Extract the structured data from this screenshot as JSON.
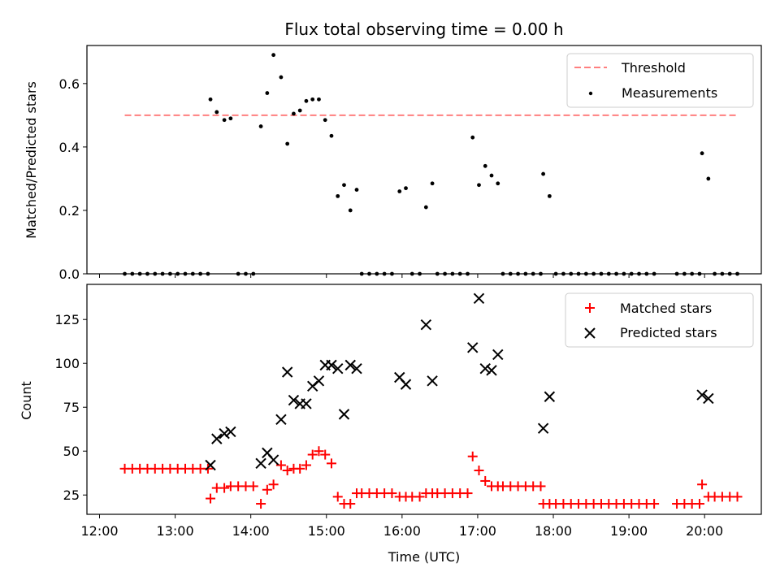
{
  "chart_data": [
    {
      "type": "scatter",
      "title": "Flux total observing time = 0.00 h",
      "xlabel": "",
      "ylabel": "Matched/Predicted stars",
      "ylim": [
        0,
        0.72
      ],
      "yticks": [
        "0.0",
        "0.2",
        "0.4",
        "0.6"
      ],
      "xlim": [
        "11:50",
        "20:45"
      ],
      "legend_position": "top-right",
      "threshold": {
        "name": "Threshold",
        "value": 0.5,
        "x_range": [
          "12:20",
          "20:25"
        ],
        "color": "#ff7f7f"
      },
      "series": [
        {
          "name": "Measurements",
          "color": "#000000",
          "points": [
            [
              "12:20",
              0
            ],
            [
              "12:26",
              0
            ],
            [
              "12:32",
              0
            ],
            [
              "12:38",
              0
            ],
            [
              "12:44",
              0
            ],
            [
              "12:50",
              0
            ],
            [
              "12:56",
              0
            ],
            [
              "13:02",
              0
            ],
            [
              "13:08",
              0
            ],
            [
              "13:14",
              0
            ],
            [
              "13:20",
              0
            ],
            [
              "13:26",
              0
            ],
            [
              "13:28",
              0.55
            ],
            [
              "13:33",
              0.51
            ],
            [
              "13:39",
              0.485
            ],
            [
              "13:44",
              0.49
            ],
            [
              "13:50",
              0
            ],
            [
              "13:56",
              0
            ],
            [
              "14:02",
              0
            ],
            [
              "14:08",
              0.465
            ],
            [
              "14:13",
              0.57
            ],
            [
              "14:18",
              0.69
            ],
            [
              "14:24",
              0.62
            ],
            [
              "14:29",
              0.41
            ],
            [
              "14:34",
              0.505
            ],
            [
              "14:39",
              0.515
            ],
            [
              "14:44",
              0.545
            ],
            [
              "14:49",
              0.55
            ],
            [
              "14:54",
              0.55
            ],
            [
              "14:59",
              0.485
            ],
            [
              "15:04",
              0.435
            ],
            [
              "15:09",
              0.245
            ],
            [
              "15:14",
              0.28
            ],
            [
              "15:19",
              0.2
            ],
            [
              "15:24",
              0.265
            ],
            [
              "15:28",
              0
            ],
            [
              "15:34",
              0
            ],
            [
              "15:40",
              0
            ],
            [
              "15:46",
              0
            ],
            [
              "15:52",
              0
            ],
            [
              "15:58",
              0.26
            ],
            [
              "16:03",
              0.27
            ],
            [
              "16:08",
              0
            ],
            [
              "16:14",
              0
            ],
            [
              "16:19",
              0.21
            ],
            [
              "16:24",
              0.285
            ],
            [
              "16:28",
              0
            ],
            [
              "16:34",
              0
            ],
            [
              "16:40",
              0
            ],
            [
              "16:46",
              0
            ],
            [
              "16:52",
              0
            ],
            [
              "16:56",
              0.43
            ],
            [
              "17:01",
              0.28
            ],
            [
              "17:06",
              0.34
            ],
            [
              "17:11",
              0.31
            ],
            [
              "17:16",
              0.285
            ],
            [
              "17:20",
              0
            ],
            [
              "17:26",
              0
            ],
            [
              "17:32",
              0
            ],
            [
              "17:38",
              0
            ],
            [
              "17:44",
              0
            ],
            [
              "17:50",
              0
            ],
            [
              "17:52",
              0.315
            ],
            [
              "17:57",
              0.245
            ],
            [
              "18:02",
              0
            ],
            [
              "18:08",
              0
            ],
            [
              "18:14",
              0
            ],
            [
              "18:20",
              0
            ],
            [
              "18:26",
              0
            ],
            [
              "18:32",
              0
            ],
            [
              "18:38",
              0
            ],
            [
              "18:44",
              0
            ],
            [
              "18:50",
              0
            ],
            [
              "18:56",
              0
            ],
            [
              "19:02",
              0
            ],
            [
              "19:08",
              0
            ],
            [
              "19:14",
              0
            ],
            [
              "19:20",
              0
            ],
            [
              "19:38",
              0
            ],
            [
              "19:44",
              0
            ],
            [
              "19:50",
              0
            ],
            [
              "19:56",
              0
            ],
            [
              "19:58",
              0.38
            ],
            [
              "20:03",
              0.3
            ],
            [
              "20:08",
              0
            ],
            [
              "20:14",
              0
            ],
            [
              "20:20",
              0
            ],
            [
              "20:26",
              0
            ]
          ]
        }
      ]
    },
    {
      "type": "scatter",
      "title": "",
      "xlabel": "Time (UTC)",
      "ylabel": "Count",
      "ylim": [
        14,
        145
      ],
      "yticks": [
        "25",
        "50",
        "75",
        "100",
        "125"
      ],
      "xticks": [
        "12:00",
        "13:00",
        "14:00",
        "15:00",
        "16:00",
        "17:00",
        "18:00",
        "19:00",
        "20:00"
      ],
      "xlim": [
        "11:50",
        "20:45"
      ],
      "legend_position": "top-right",
      "series": [
        {
          "name": "Matched stars",
          "color": "#ff0000",
          "marker": "plus",
          "points": [
            [
              "12:20",
              40
            ],
            [
              "12:26",
              40
            ],
            [
              "12:32",
              40
            ],
            [
              "12:38",
              40
            ],
            [
              "12:44",
              40
            ],
            [
              "12:50",
              40
            ],
            [
              "12:56",
              40
            ],
            [
              "13:02",
              40
            ],
            [
              "13:08",
              40
            ],
            [
              "13:14",
              40
            ],
            [
              "13:20",
              40
            ],
            [
              "13:26",
              40
            ],
            [
              "13:28",
              23
            ],
            [
              "13:33",
              29
            ],
            [
              "13:39",
              29
            ],
            [
              "13:44",
              30
            ],
            [
              "13:50",
              30
            ],
            [
              "13:56",
              30
            ],
            [
              "14:02",
              30
            ],
            [
              "14:08",
              20
            ],
            [
              "14:13",
              28
            ],
            [
              "14:18",
              31
            ],
            [
              "14:24",
              42
            ],
            [
              "14:29",
              39
            ],
            [
              "14:34",
              40
            ],
            [
              "14:39",
              40
            ],
            [
              "14:44",
              42
            ],
            [
              "14:49",
              48
            ],
            [
              "14:54",
              50
            ],
            [
              "14:59",
              48
            ],
            [
              "15:04",
              43
            ],
            [
              "15:09",
              24
            ],
            [
              "15:14",
              20
            ],
            [
              "15:19",
              20
            ],
            [
              "15:24",
              26
            ],
            [
              "15:28",
              26
            ],
            [
              "15:34",
              26
            ],
            [
              "15:40",
              26
            ],
            [
              "15:46",
              26
            ],
            [
              "15:52",
              26
            ],
            [
              "15:58",
              24
            ],
            [
              "16:03",
              24
            ],
            [
              "16:08",
              24
            ],
            [
              "16:14",
              24
            ],
            [
              "16:19",
              26
            ],
            [
              "16:24",
              26
            ],
            [
              "16:28",
              26
            ],
            [
              "16:34",
              26
            ],
            [
              "16:40",
              26
            ],
            [
              "16:46",
              26
            ],
            [
              "16:52",
              26
            ],
            [
              "16:56",
              47
            ],
            [
              "17:01",
              39
            ],
            [
              "17:06",
              33
            ],
            [
              "17:11",
              30
            ],
            [
              "17:16",
              30
            ],
            [
              "17:20",
              30
            ],
            [
              "17:26",
              30
            ],
            [
              "17:32",
              30
            ],
            [
              "17:38",
              30
            ],
            [
              "17:44",
              30
            ],
            [
              "17:50",
              30
            ],
            [
              "17:52",
              20
            ],
            [
              "17:57",
              20
            ],
            [
              "18:02",
              20
            ],
            [
              "18:08",
              20
            ],
            [
              "18:14",
              20
            ],
            [
              "18:20",
              20
            ],
            [
              "18:26",
              20
            ],
            [
              "18:32",
              20
            ],
            [
              "18:38",
              20
            ],
            [
              "18:44",
              20
            ],
            [
              "18:50",
              20
            ],
            [
              "18:56",
              20
            ],
            [
              "19:02",
              20
            ],
            [
              "19:08",
              20
            ],
            [
              "19:14",
              20
            ],
            [
              "19:20",
              20
            ],
            [
              "19:38",
              20
            ],
            [
              "19:44",
              20
            ],
            [
              "19:50",
              20
            ],
            [
              "19:56",
              20
            ],
            [
              "19:58",
              31
            ],
            [
              "20:03",
              24
            ],
            [
              "20:08",
              24
            ],
            [
              "20:14",
              24
            ],
            [
              "20:20",
              24
            ],
            [
              "20:26",
              24
            ]
          ]
        },
        {
          "name": "Predicted stars",
          "color": "#000000",
          "marker": "x",
          "points": [
            [
              "13:28",
              42
            ],
            [
              "13:33",
              57
            ],
            [
              "13:39",
              60
            ],
            [
              "13:44",
              61
            ],
            [
              "14:08",
              43
            ],
            [
              "14:13",
              49
            ],
            [
              "14:18",
              45
            ],
            [
              "14:24",
              68
            ],
            [
              "14:29",
              95
            ],
            [
              "14:34",
              79
            ],
            [
              "14:39",
              77
            ],
            [
              "14:44",
              77
            ],
            [
              "14:49",
              87
            ],
            [
              "14:54",
              90
            ],
            [
              "14:59",
              99
            ],
            [
              "15:04",
              99
            ],
            [
              "15:09",
              97
            ],
            [
              "15:14",
              71
            ],
            [
              "15:19",
              99
            ],
            [
              "15:24",
              97
            ],
            [
              "15:58",
              92
            ],
            [
              "16:03",
              88
            ],
            [
              "16:19",
              122
            ],
            [
              "16:24",
              90
            ],
            [
              "16:56",
              109
            ],
            [
              "17:01",
              137
            ],
            [
              "17:06",
              97
            ],
            [
              "17:11",
              96
            ],
            [
              "17:16",
              105
            ],
            [
              "17:52",
              63
            ],
            [
              "17:57",
              81
            ],
            [
              "19:58",
              82
            ],
            [
              "20:03",
              80
            ]
          ]
        }
      ]
    }
  ]
}
